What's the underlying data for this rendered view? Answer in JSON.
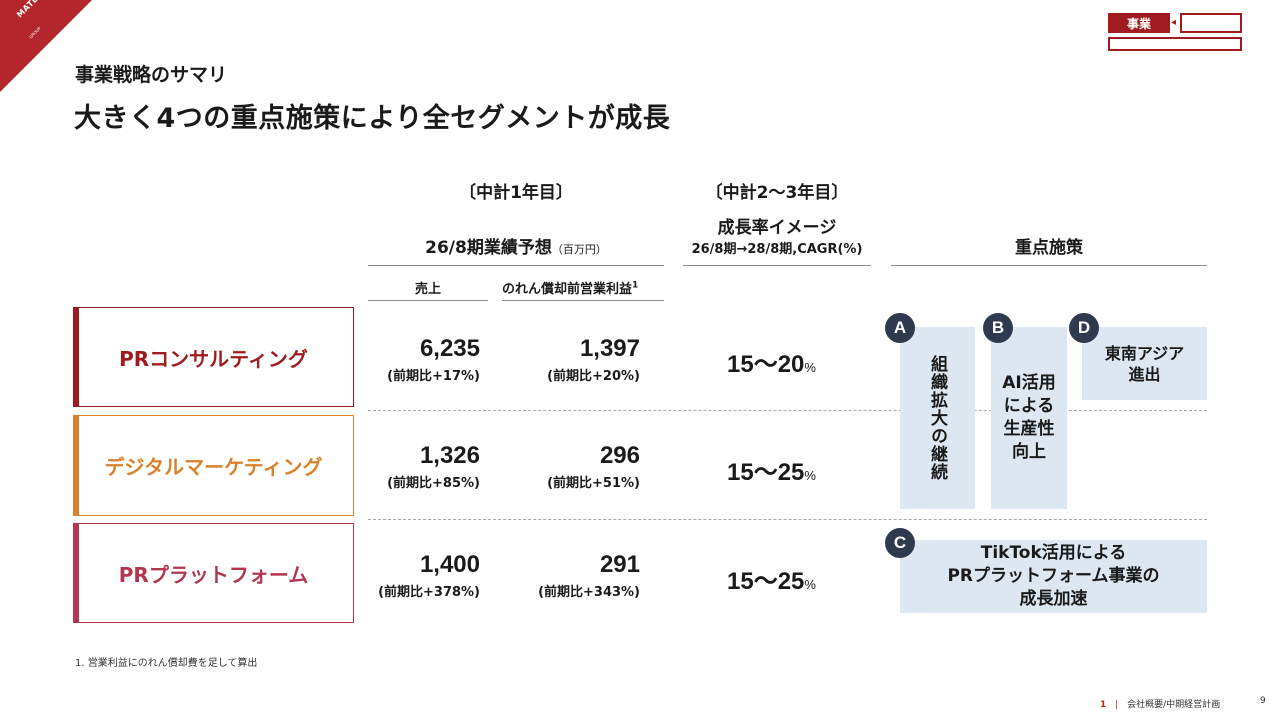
{
  "brand": {
    "logo_text": "MATERIAL",
    "logo_sub": "GROUP",
    "accent": "#b3262b"
  },
  "nav": {
    "active_tab": "事業"
  },
  "header": {
    "subtitle": "事業戦略のサマリ",
    "title": "大きく4つの重点施策により全セグメントが成長"
  },
  "columns": {
    "plan_year1": "〔中計1年目〕",
    "plan_year23": "〔中計2～3年目〕",
    "forecast_title": "26/8期業績予想",
    "forecast_unit": "（百万円）",
    "growth_title": "成長率イメージ",
    "growth_sub": "26/8期→28/8期,CAGR(%)",
    "measures_title": "重点施策",
    "sales": "売上",
    "op_profit": "のれん償却前営業利益",
    "op_profit_note": "1"
  },
  "segments": [
    {
      "name": "PRコンサルティング",
      "color": "#a01b1f",
      "sales": "6,235",
      "sales_yoy": "(前期比+17%)",
      "profit": "1,397",
      "profit_yoy": "(前期比+20%)",
      "growth": "15～20",
      "growth_unit": "%"
    },
    {
      "name": "デジタルマーケティング",
      "color": "#d9822b",
      "sales": "1,326",
      "sales_yoy": "(前期比+85%)",
      "profit": "296",
      "profit_yoy": "(前期比+51%)",
      "growth": "15～25",
      "growth_unit": "%"
    },
    {
      "name": "PRプラットフォーム",
      "color": "#b3364f",
      "sales": "1,400",
      "sales_yoy": "(前期比+378%)",
      "profit": "291",
      "profit_yoy": "(前期比+343%)",
      "growth": "15～25",
      "growth_unit": "%"
    }
  ],
  "measures": {
    "a": {
      "badge": "A",
      "text": "組織拡大の継続"
    },
    "b": {
      "badge": "B",
      "text_lines": [
        "AI活用",
        "による",
        "生産性",
        "向上"
      ]
    },
    "d": {
      "badge": "D",
      "text_lines": [
        "東南アジア",
        "進出"
      ]
    },
    "c": {
      "badge": "C",
      "text_lines": [
        "TikTok活用による",
        "PRプラットフォーム事業の",
        "成長加速"
      ]
    }
  },
  "footnote": "1. 営業利益にのれん償却費を足して算出",
  "footer": {
    "section_no": "1",
    "separator": "|",
    "section": "会社概要/中期経営計画",
    "page": "9"
  }
}
